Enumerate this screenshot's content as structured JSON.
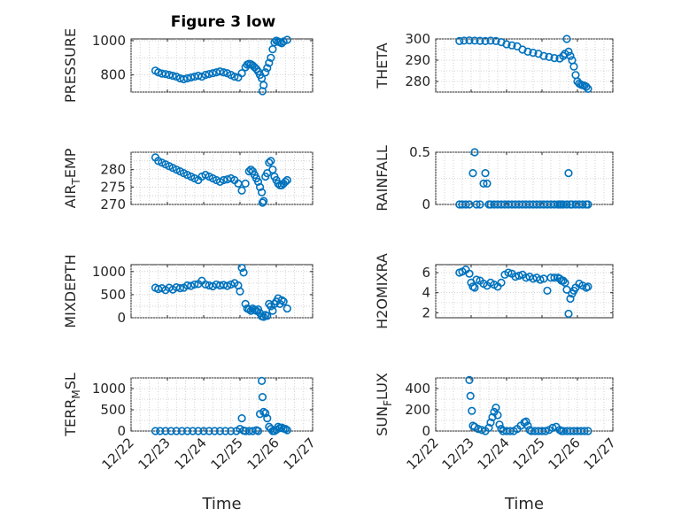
{
  "figure": {
    "title": "Figure 3 low",
    "marker_color": "#0072BD"
  },
  "chart_data": [
    {
      "type": "scatter",
      "ylabel": "PRESSURE",
      "xlabel": "",
      "xlim": [
        "12/22",
        "12/27"
      ],
      "ylim": [
        700,
        1010
      ],
      "yticks": [
        800,
        1000
      ],
      "xticks": [
        "12/22",
        "12/23",
        "12/24",
        "12/25",
        "12/26",
        "12/27"
      ],
      "grid": true,
      "series": [
        {
          "x": [
            0.67,
            0.75,
            0.85,
            0.95,
            1.05,
            1.15,
            1.25,
            1.35,
            1.45,
            1.55,
            1.65,
            1.75,
            1.85,
            1.95,
            2.05,
            2.15,
            2.25,
            2.35,
            2.45,
            2.55,
            2.65,
            2.75,
            2.85,
            2.95,
            3.05,
            3.15,
            3.2,
            3.25,
            3.3,
            3.35,
            3.4,
            3.45,
            3.5,
            3.55,
            3.6,
            3.62,
            3.65,
            3.7,
            3.75,
            3.8,
            3.85,
            3.9,
            3.95,
            4.0,
            4.05,
            4.1,
            4.15,
            4.2,
            4.3
          ],
          "y": [
            825,
            815,
            808,
            805,
            800,
            795,
            790,
            780,
            775,
            780,
            785,
            790,
            795,
            790,
            800,
            805,
            810,
            815,
            820,
            815,
            810,
            800,
            790,
            785,
            810,
            845,
            860,
            865,
            862,
            855,
            845,
            835,
            820,
            800,
            780,
            705,
            740,
            815,
            840,
            870,
            900,
            950,
            990,
            1000,
            995,
            990,
            985,
            995,
            1005
          ]
        }
      ]
    },
    {
      "type": "scatter",
      "ylabel": "THETA",
      "xlabel": "",
      "xlim": [
        "12/22",
        "12/27"
      ],
      "ylim": [
        275,
        300
      ],
      "yticks": [
        280,
        290,
        300
      ],
      "xticks": [
        "12/22",
        "12/23",
        "12/24",
        "12/25",
        "12/26",
        "12/27"
      ],
      "grid": true,
      "series": [
        {
          "x": [
            0.67,
            0.8,
            0.95,
            1.1,
            1.25,
            1.4,
            1.55,
            1.7,
            1.85,
            2.0,
            2.15,
            2.3,
            2.45,
            2.6,
            2.75,
            2.9,
            3.05,
            3.2,
            3.35,
            3.5,
            3.6,
            3.65,
            3.7,
            3.75,
            3.8,
            3.85,
            3.9,
            3.95,
            4.0,
            4.05,
            4.1,
            4.15,
            4.2,
            4.25,
            4.3
          ],
          "y": [
            299,
            299.2,
            299.3,
            299.2,
            299.1,
            299,
            299.2,
            299,
            298.5,
            297.5,
            297,
            296.5,
            295,
            294,
            293.5,
            293,
            292,
            291.5,
            291,
            290.8,
            292,
            293,
            300,
            294,
            292,
            290,
            287,
            283,
            280,
            279,
            278.5,
            278.2,
            278,
            277.5,
            276.5
          ]
        }
      ]
    },
    {
      "type": "scatter",
      "ylabel": "AIR_TEMP",
      "xlabel": "",
      "xlim": [
        "12/22",
        "12/27"
      ],
      "ylim": [
        270,
        285
      ],
      "yticks": [
        270,
        275,
        280
      ],
      "xticks": [
        "12/22",
        "12/23",
        "12/24",
        "12/25",
        "12/26",
        "12/27"
      ],
      "grid": true,
      "series": [
        {
          "x": [
            0.67,
            0.75,
            0.85,
            0.95,
            1.05,
            1.15,
            1.25,
            1.35,
            1.45,
            1.55,
            1.65,
            1.75,
            1.85,
            1.95,
            2.05,
            2.15,
            2.25,
            2.35,
            2.45,
            2.55,
            2.65,
            2.75,
            2.85,
            2.95,
            3.05,
            3.15,
            3.25,
            3.3,
            3.35,
            3.4,
            3.45,
            3.5,
            3.55,
            3.6,
            3.62,
            3.65,
            3.7,
            3.75,
            3.8,
            3.85,
            3.9,
            3.95,
            4.0,
            4.05,
            4.1,
            4.15,
            4.2,
            4.25,
            4.3
          ],
          "y": [
            283.5,
            282.5,
            282,
            281.5,
            281,
            280.5,
            280,
            279.5,
            279,
            278.5,
            278,
            277.5,
            277,
            278,
            278.5,
            278,
            277.5,
            277,
            276.5,
            277,
            277.2,
            277.5,
            277,
            276,
            274,
            276,
            279.5,
            280,
            279.5,
            278.5,
            277.5,
            276.5,
            275,
            273.5,
            270.5,
            271,
            278,
            279,
            282,
            282.5,
            280,
            278,
            277,
            276,
            275.5,
            275.5,
            276,
            276.5,
            277
          ]
        }
      ]
    },
    {
      "type": "scatter",
      "ylabel": "RAINFALL",
      "xlabel": "",
      "xlim": [
        "12/22",
        "12/27"
      ],
      "ylim": [
        0,
        0.5
      ],
      "yticks": [
        0,
        0.5
      ],
      "xticks": [
        "12/22",
        "12/23",
        "12/24",
        "12/25",
        "12/26",
        "12/27"
      ],
      "grid": true,
      "series": [
        {
          "x": [
            0.67,
            0.75,
            0.85,
            0.95,
            1.05,
            1.1,
            1.15,
            1.25,
            1.35,
            1.4,
            1.45,
            1.5,
            1.55,
            1.65,
            1.75,
            1.85,
            1.95,
            2.05,
            2.15,
            2.25,
            2.35,
            2.45,
            2.55,
            2.65,
            2.75,
            2.85,
            2.95,
            3.05,
            3.15,
            3.25,
            3.35,
            3.45,
            3.5,
            3.55,
            3.6,
            3.7,
            3.75,
            3.8,
            3.85,
            3.95,
            4.05,
            4.15,
            4.25,
            4.3
          ],
          "y": [
            0,
            0,
            0,
            0,
            0.3,
            0.5,
            0,
            0,
            0.2,
            0.3,
            0.2,
            0,
            0,
            0,
            0,
            0,
            0,
            0,
            0,
            0,
            0,
            0,
            0,
            0,
            0,
            0,
            0,
            0,
            0,
            0,
            0,
            0,
            0,
            0,
            0,
            0,
            0.3,
            0,
            0,
            0,
            0,
            0,
            0,
            0
          ]
        }
      ]
    },
    {
      "type": "scatter",
      "ylabel": "MIXDEPTH",
      "xlabel": "",
      "xlim": [
        "12/22",
        "12/27"
      ],
      "ylim": [
        0,
        1150
      ],
      "yticks": [
        0,
        500,
        1000
      ],
      "xticks": [
        "12/22",
        "12/23",
        "12/24",
        "12/25",
        "12/26",
        "12/27"
      ],
      "grid": true,
      "series": [
        {
          "x": [
            0.67,
            0.75,
            0.85,
            0.95,
            1.05,
            1.15,
            1.25,
            1.35,
            1.45,
            1.55,
            1.65,
            1.75,
            1.85,
            1.95,
            2.05,
            2.15,
            2.25,
            2.35,
            2.45,
            2.55,
            2.65,
            2.75,
            2.85,
            2.95,
            3.0,
            3.05,
            3.1,
            3.15,
            3.2,
            3.25,
            3.3,
            3.35,
            3.4,
            3.45,
            3.5,
            3.55,
            3.6,
            3.65,
            3.7,
            3.75,
            3.8,
            3.85,
            3.9,
            3.95,
            4.0,
            4.05,
            4.1,
            4.15,
            4.2,
            4.3
          ],
          "y": [
            650,
            620,
            640,
            600,
            650,
            610,
            660,
            640,
            650,
            700,
            690,
            720,
            730,
            800,
            720,
            700,
            680,
            720,
            700,
            710,
            690,
            720,
            750,
            700,
            570,
            1080,
            980,
            300,
            200,
            180,
            150,
            200,
            170,
            150,
            180,
            100,
            30,
            20,
            60,
            40,
            300,
            250,
            150,
            300,
            350,
            420,
            300,
            380,
            350,
            200
          ]
        }
      ]
    },
    {
      "type": "scatter",
      "ylabel": "H2OMIXRA",
      "xlabel": "",
      "xlim": [
        "12/22",
        "12/27"
      ],
      "ylim": [
        1.5,
        6.8
      ],
      "yticks": [
        2,
        4,
        6
      ],
      "xticks": [
        "12/22",
        "12/23",
        "12/24",
        "12/25",
        "12/26",
        "12/27"
      ],
      "grid": true,
      "series": [
        {
          "x": [
            0.67,
            0.75,
            0.85,
            0.95,
            1.0,
            1.05,
            1.1,
            1.15,
            1.25,
            1.35,
            1.45,
            1.55,
            1.65,
            1.75,
            1.85,
            1.95,
            2.05,
            2.15,
            2.25,
            2.35,
            2.45,
            2.55,
            2.65,
            2.75,
            2.85,
            2.95,
            3.05,
            3.15,
            3.25,
            3.35,
            3.45,
            3.5,
            3.55,
            3.6,
            3.65,
            3.7,
            3.75,
            3.8,
            3.85,
            3.9,
            3.95,
            4.05,
            4.15,
            4.25,
            4.3
          ],
          "y": [
            6,
            6.1,
            6.3,
            5.9,
            5,
            4.6,
            4.5,
            5.3,
            5.2,
            4.9,
            4.7,
            5,
            4.8,
            4.6,
            5,
            5.8,
            6,
            5.9,
            5.6,
            5.7,
            5.8,
            5.5,
            5.6,
            5.4,
            5.5,
            5.3,
            5.4,
            4.2,
            5.5,
            5.5,
            5.5,
            5.4,
            5.2,
            5.2,
            5,
            4.3,
            1.9,
            3.4,
            3.9,
            4.2,
            4.5,
            4.9,
            4.7,
            4.5,
            4.6
          ]
        }
      ]
    },
    {
      "type": "scatter",
      "ylabel": "TERR_MSL",
      "xlabel": "Time",
      "xlim": [
        "12/22",
        "12/27"
      ],
      "ylim": [
        0,
        1250
      ],
      "yticks": [
        0,
        500,
        1000
      ],
      "xticks": [
        "12/22",
        "12/23",
        "12/24",
        "12/25",
        "12/26",
        "12/27"
      ],
      "grid": true,
      "series": [
        {
          "x": [
            0.67,
            0.8,
            0.95,
            1.1,
            1.25,
            1.4,
            1.55,
            1.7,
            1.85,
            2.0,
            2.15,
            2.3,
            2.45,
            2.6,
            2.75,
            2.9,
            3.0,
            3.05,
            3.1,
            3.15,
            3.25,
            3.35,
            3.45,
            3.5,
            3.55,
            3.6,
            3.62,
            3.65,
            3.7,
            3.75,
            3.8,
            3.85,
            3.9,
            3.95,
            4.0,
            4.05,
            4.1,
            4.15,
            4.2,
            4.25,
            4.3
          ],
          "y": [
            0,
            0,
            0,
            0,
            0,
            0,
            0,
            0,
            0,
            0,
            0,
            0,
            0,
            0,
            0,
            0,
            50,
            300,
            10,
            0,
            0,
            0,
            20,
            0,
            400,
            1180,
            800,
            450,
            420,
            300,
            100,
            50,
            0,
            0,
            30,
            100,
            70,
            80,
            60,
            50,
            20
          ]
        }
      ]
    },
    {
      "type": "scatter",
      "ylabel": "SUN_FLUX",
      "xlabel": "Time",
      "xlim": [
        "12/22",
        "12/27"
      ],
      "ylim": [
        0,
        500
      ],
      "yticks": [
        0,
        200,
        400
      ],
      "xticks": [
        "12/22",
        "12/23",
        "12/24",
        "12/25",
        "12/26",
        "12/27"
      ],
      "grid": true,
      "series": [
        {
          "x": [
            0.95,
            0.98,
            1.02,
            1.05,
            1.1,
            1.2,
            1.3,
            1.4,
            1.5,
            1.55,
            1.6,
            1.65,
            1.7,
            1.75,
            1.8,
            1.85,
            1.9,
            2.0,
            2.1,
            2.2,
            2.3,
            2.4,
            2.5,
            2.55,
            2.6,
            2.65,
            2.7,
            2.8,
            2.9,
            3.0,
            3.1,
            3.2,
            3.3,
            3.4,
            3.5,
            3.55,
            3.6,
            3.7,
            3.8,
            3.9,
            4.0,
            4.1,
            4.2,
            4.3
          ],
          "y": [
            480,
            330,
            190,
            50,
            40,
            20,
            10,
            0,
            30,
            80,
            130,
            180,
            220,
            150,
            60,
            20,
            0,
            0,
            0,
            0,
            20,
            50,
            80,
            90,
            50,
            10,
            0,
            0,
            0,
            0,
            0,
            10,
            30,
            40,
            10,
            0,
            0,
            0,
            0,
            0,
            0,
            0,
            0,
            0
          ]
        }
      ]
    }
  ]
}
